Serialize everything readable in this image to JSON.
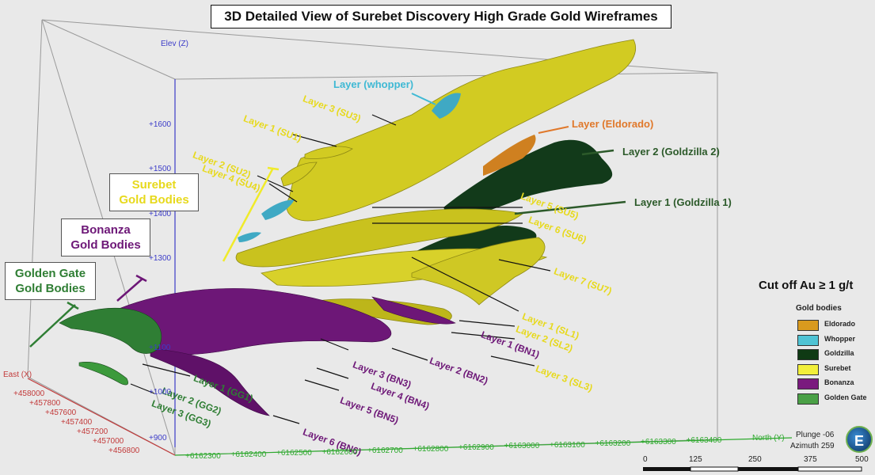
{
  "title": "3D Detailed View of Surebet Discovery High Grade Gold Wireframes",
  "group_labels": {
    "surebet": "Surebet\nGold Bodies",
    "bonanza": "Bonanza\nGold Bodies",
    "golden_gate": "Golden Gate\nGold Bodies"
  },
  "layer_labels": {
    "whopper": "Layer (whopper)",
    "eldorado": "Layer (Eldorado)",
    "goldzilla2": "Layer 2 (Goldzilla 2)",
    "goldzilla1": "Layer 1 (Goldzilla 1)",
    "su3": "Layer 3 (SU3)",
    "su1": "Layer 1 (SU1)",
    "su2": "Layer 2 (SU2)",
    "su4": "Layer 4 (SU4)",
    "su5": "Layer 5 (SU5)",
    "su6": "Layer 6 (SU6)",
    "su7": "Layer 7 (SU7)",
    "sl1": "Layer 1 (SL1)",
    "sl2": "Layer 2 (SL2)",
    "sl3": "Layer 3 (SL3)",
    "bn1": "Layer 1 (BN1)",
    "bn2": "Layer 2 (BN2)",
    "bn3": "Layer 3 (BN3)",
    "bn4": "Layer 4 (BN4)",
    "bn5": "Layer 5 (BN5)",
    "bn6": "Layer 6 (BN6)",
    "gg1": "Layer 1 (GG1)",
    "gg2": "Layer 2 (GG2)",
    "gg3": "Layer 3 (GG3)"
  },
  "axes": {
    "elev_label": "Elev (Z)",
    "elev_ticks": [
      "+1600",
      "+1500",
      "+1400",
      "+1300",
      "+1100",
      "+1000",
      "+900"
    ],
    "east_label": "East (X)",
    "east_ticks": [
      "+458000",
      "+457800",
      "+457600",
      "+457400",
      "+457200",
      "+457000",
      "+456800"
    ],
    "north_label": "North (Y)",
    "north_ticks": [
      "+6162300",
      "+6162400",
      "+6162500",
      "+6162600",
      "+6162700",
      "+6162800",
      "+6162900",
      "+6163000",
      "+6163100",
      "+6163200",
      "+6163300",
      "+6163400"
    ]
  },
  "legend": {
    "cutoff": "Cut off Au ≥ 1 g/t",
    "title": "Gold bodies",
    "items": [
      {
        "label": "Eldorado",
        "color": "#d99a1e"
      },
      {
        "label": "Whopper",
        "color": "#4fc3d4"
      },
      {
        "label": "Goldzilla",
        "color": "#0f3a14"
      },
      {
        "label": "Surebet",
        "color": "#f2ef3a"
      },
      {
        "label": "Bonanza",
        "color": "#7a1a7e"
      },
      {
        "label": "Golden Gate",
        "color": "#4aa046"
      }
    ]
  },
  "view": {
    "plunge": "Plunge -06",
    "azimuth": "Azimuth 259"
  },
  "scale_bar": [
    "0",
    "125",
    "250",
    "375",
    "500"
  ],
  "logo_text": "E",
  "colors": {
    "surebet": "#d2cb22",
    "surebet_label": "#e7d91c",
    "bonanza": "#6d1777",
    "golden_gate": "#2f7e34",
    "goldzilla": "#123a1a",
    "goldzilla_label": "#2c5a2a",
    "eldorado": "#cf8020",
    "eldorado_label": "#e0782a",
    "whopper": "#3fa9c4"
  }
}
